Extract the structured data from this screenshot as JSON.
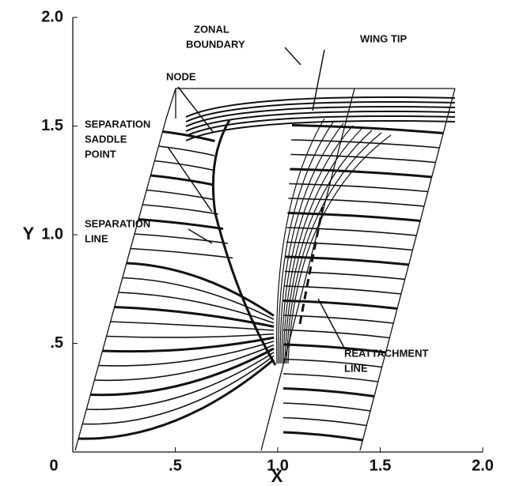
{
  "chart_data": {
    "type": "flow",
    "x_label": "X",
    "y_label": "Y",
    "xlim": [
      0,
      2
    ],
    "ylim": [
      0,
      2
    ],
    "xticks": [
      0,
      {
        "value": 0.5,
        "label": ".5"
      },
      {
        "value": 1,
        "label": "1.0"
      },
      1.5,
      {
        "value": 2,
        "label": "2.0"
      }
    ],
    "yticks": [
      {
        "value": 0.5,
        "label": ".5"
      },
      {
        "value": 1,
        "label": "1.0"
      },
      1.5,
      {
        "value": 2,
        "label": "2.0"
      }
    ],
    "annotations": [
      {
        "lines": [
          "ZONAL",
          "BOUNDARY"
        ]
      },
      {
        "lines": [
          "WING TIP"
        ]
      },
      {
        "lines": [
          "NODE"
        ]
      },
      {
        "lines": [
          "SEPARATION",
          "SADDLE",
          "POINT"
        ]
      },
      {
        "lines": [
          "SEPARATION",
          "LINE"
        ]
      },
      {
        "lines": [
          "REATTACHMENT",
          "LINE"
        ]
      }
    ]
  }
}
